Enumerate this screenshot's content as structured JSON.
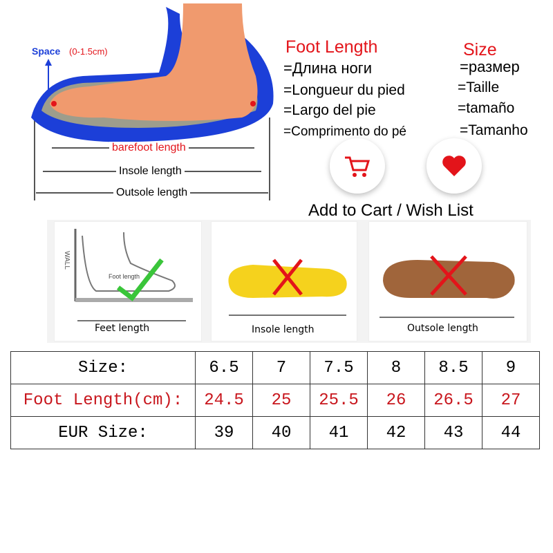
{
  "diagram": {
    "space_label": "Space",
    "space_range": "(0-1.5cm)",
    "barefoot_length": "barefoot length",
    "insole_length": "Insole length",
    "outsole_length": "Outsole length"
  },
  "foot_length": {
    "title": "Foot Length",
    "translations": [
      "=Длина ноги",
      "=Longueur du pied",
      "=Largo del pie",
      "=Comprimento do pé"
    ]
  },
  "size": {
    "title": "Size",
    "translations": [
      "=размер",
      "=Taille",
      "=tamaño",
      "=Tamanho"
    ]
  },
  "actions": {
    "label": "Add to Cart / Wish List",
    "cart_icon": "shopping-cart-icon",
    "wish_icon": "heart-icon",
    "accent": "#e3141a"
  },
  "panels": [
    {
      "label": "Feet length",
      "wall": "WALL",
      "inner": "Foot length",
      "mark": "check"
    },
    {
      "label": "Insole length",
      "mark": "cross"
    },
    {
      "label": "Outsole length",
      "mark": "cross"
    }
  ],
  "table": {
    "rows": [
      {
        "header": "Size:",
        "values": [
          "6.5",
          "7",
          "7.5",
          "8",
          "8.5",
          "9"
        ]
      },
      {
        "header": "Foot Length(cm):",
        "values": [
          "24.5",
          "25",
          "25.5",
          "26",
          "26.5",
          "27"
        ]
      },
      {
        "header": "EUR Size:",
        "values": [
          "39",
          "40",
          "41",
          "42",
          "43",
          "44"
        ]
      }
    ]
  }
}
